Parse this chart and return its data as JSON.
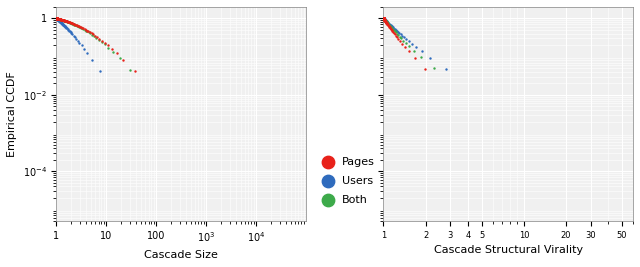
{
  "colors": {
    "pages": "#e8211a",
    "users": "#2f6bbd",
    "both": "#3daa4a"
  },
  "legend": {
    "pages": "Pages",
    "users": "Users",
    "both": "Both"
  },
  "plot1": {
    "xlabel": "Cascade Size",
    "ylabel": "Empirical CCDF",
    "xlim": [
      1,
      100000
    ],
    "ylim": [
      1e-05,
      2
    ]
  },
  "plot2": {
    "xlabel": "Cascade Structural Virality",
    "xlim": [
      1,
      60
    ],
    "ylim": [
      1e-05,
      2
    ]
  },
  "marker_size": 3,
  "background_color": "#f0f0f0"
}
